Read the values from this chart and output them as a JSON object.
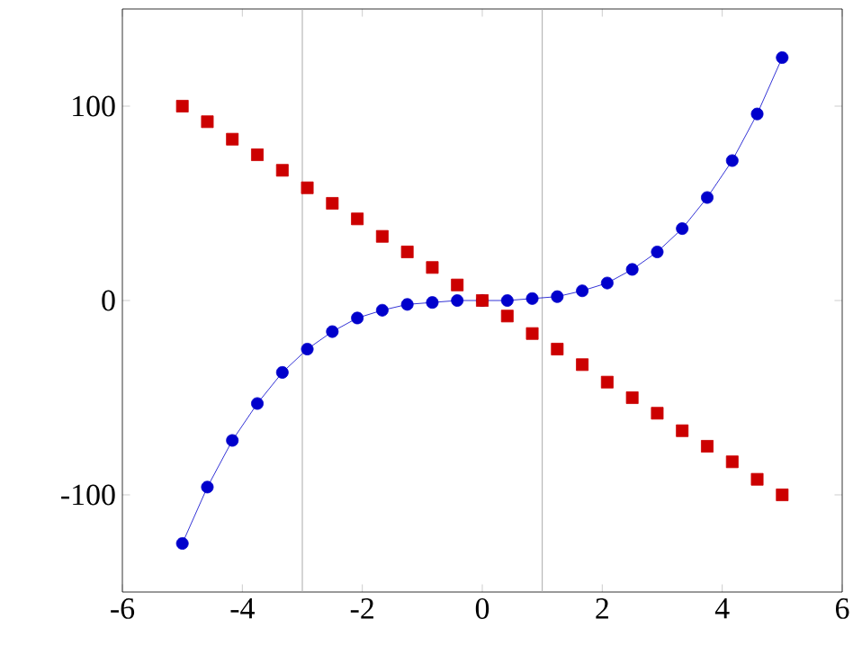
{
  "chart_data": {
    "type": "line",
    "xlim": [
      -6,
      6
    ],
    "ylim": [
      -150,
      150
    ],
    "xticks": [
      -6,
      -4,
      -2,
      0,
      2,
      4,
      6
    ],
    "yticks": [
      -100,
      0,
      100
    ],
    "grid": false,
    "series": [
      {
        "color": "#0000cc",
        "marker": "circle",
        "x": [
          -5,
          -4.583,
          -4.167,
          -3.75,
          -3.333,
          -2.917,
          -2.5,
          -2.083,
          -1.667,
          -1.25,
          -0.833,
          -0.417,
          0,
          0.417,
          0.833,
          1.25,
          1.667,
          2.083,
          2.5,
          2.917,
          3.333,
          3.75,
          4.167,
          4.583,
          5
        ],
        "values": [
          -125,
          -96,
          -72,
          -53,
          -37,
          -25,
          -16,
          -9,
          -5,
          -2,
          -1,
          0,
          0,
          0,
          1,
          2,
          5,
          9,
          16,
          25,
          37,
          53,
          72,
          96,
          125
        ]
      },
      {
        "type": "scatter",
        "color": "#cc0000",
        "marker": "square",
        "x": [
          -5,
          -4.583,
          -4.167,
          -3.75,
          -3.333,
          -2.917,
          -2.5,
          -2.083,
          -1.667,
          -1.25,
          -0.833,
          -0.417,
          0,
          0.417,
          0.833,
          1.25,
          1.667,
          2.083,
          2.5,
          2.917,
          3.333,
          3.75,
          4.167,
          4.583,
          5
        ],
        "values": [
          100,
          92,
          83,
          75,
          67,
          58,
          50,
          42,
          33,
          25,
          17,
          8,
          0,
          -8,
          -17,
          -25,
          -33,
          -42,
          -50,
          -58,
          -67,
          -75,
          -83,
          -92,
          -100
        ]
      }
    ],
    "ref_lines": [
      {
        "axis": "x",
        "value": -3,
        "color": "#aaaaaa"
      },
      {
        "axis": "x",
        "value": 1,
        "color": "#aaaaaa"
      }
    ]
  }
}
